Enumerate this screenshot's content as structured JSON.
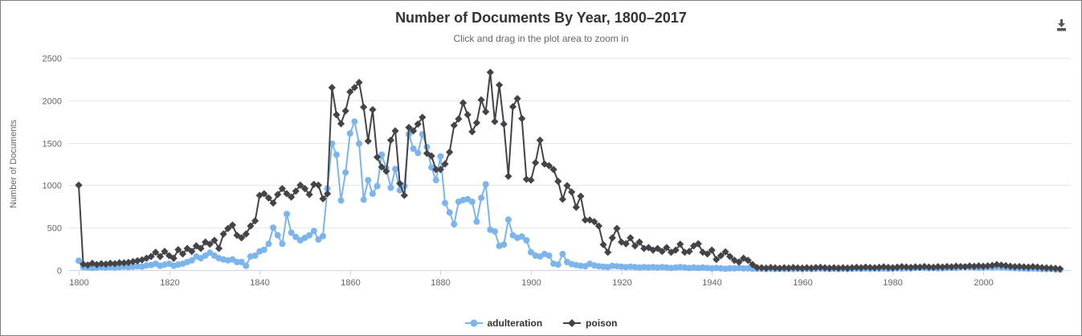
{
  "header": {
    "title": "Number of Documents By Year, 1800–2017",
    "subtitle": "Click and drag in the plot area to zoom in"
  },
  "toolbar": {
    "export_icon": "download-icon"
  },
  "colors": {
    "adulteration": "#7cb5ec",
    "poison": "#434348",
    "grid": "#e6e6e6",
    "axis_line": "#ccd6eb",
    "tick_label": "#666666",
    "title_text": "#333333",
    "export_icon": "#555555"
  },
  "chart_data": {
    "type": "line",
    "title": "Number of Documents By Year, 1800–2017",
    "subtitle": "Click and drag in the plot area to zoom in",
    "xlabel": "",
    "ylabel": "Number of Documents",
    "xlim": [
      1800,
      2017
    ],
    "ylim": [
      0,
      2500
    ],
    "x_ticks": [
      1800,
      1820,
      1840,
      1860,
      1880,
      1900,
      1920,
      1940,
      1960,
      1980,
      2000
    ],
    "y_ticks": [
      0,
      500,
      1000,
      1500,
      2000,
      2500
    ],
    "grid": "horizontal",
    "legend_position": "bottom-center",
    "x_years": {
      "start": 1800,
      "end": 2017,
      "step": 1
    },
    "series": [
      {
        "name": "adulteration",
        "color": "#7cb5ec",
        "marker": "circle",
        "values": [
          110,
          35,
          30,
          25,
          30,
          35,
          30,
          35,
          30,
          35,
          40,
          35,
          40,
          45,
          40,
          55,
          60,
          75,
          50,
          65,
          75,
          50,
          65,
          75,
          95,
          115,
          160,
          140,
          170,
          205,
          170,
          140,
          125,
          115,
          125,
          95,
          95,
          50,
          160,
          170,
          220,
          240,
          310,
          500,
          410,
          310,
          660,
          440,
          390,
          350,
          380,
          410,
          460,
          360,
          400,
          960,
          1490,
          1360,
          820,
          1150,
          1610,
          1750,
          1490,
          830,
          1060,
          900,
          990,
          1360,
          1200,
          970,
          1190,
          940,
          990,
          1600,
          1430,
          1380,
          1600,
          1450,
          1210,
          1060,
          1340,
          790,
          680,
          540,
          805,
          825,
          835,
          805,
          570,
          850,
          1010,
          475,
          455,
          285,
          300,
          595,
          410,
          380,
          395,
          350,
          210,
          170,
          160,
          190,
          170,
          75,
          65,
          190,
          95,
          70,
          60,
          50,
          45,
          75,
          55,
          45,
          40,
          35,
          50,
          45,
          40,
          35,
          40,
          35,
          30,
          35,
          30,
          35,
          30,
          35,
          30,
          25,
          30,
          35,
          30,
          25,
          30,
          25,
          30,
          25,
          20,
          25,
          20,
          15,
          20,
          20,
          25,
          20,
          20,
          15,
          15,
          15,
          12,
          15,
          12,
          15,
          12,
          15,
          12,
          15,
          12,
          15,
          12,
          15,
          18,
          15,
          12,
          15,
          12,
          15,
          12,
          15,
          18,
          15,
          18,
          15,
          18,
          15,
          18,
          15,
          18,
          20,
          18,
          22,
          20,
          25,
          28,
          25,
          22,
          25,
          20,
          22,
          25,
          28,
          25,
          35,
          40,
          35,
          30,
          28,
          30,
          35,
          30,
          38,
          32,
          30,
          25,
          22,
          20,
          18,
          15,
          18,
          15,
          12,
          10,
          12,
          8,
          5
        ]
      },
      {
        "name": "poison",
        "color": "#434348",
        "marker": "diamond",
        "values": [
          1000,
          70,
          60,
          80,
          65,
          75,
          70,
          80,
          75,
          85,
          85,
          90,
          100,
          110,
          120,
          140,
          160,
          210,
          160,
          220,
          170,
          140,
          240,
          190,
          255,
          220,
          285,
          255,
          330,
          305,
          350,
          255,
          425,
          490,
          530,
          410,
          380,
          425,
          520,
          580,
          880,
          900,
          850,
          790,
          890,
          960,
          900,
          860,
          930,
          1000,
          960,
          890,
          1010,
          1000,
          840,
          900,
          2150,
          1830,
          1725,
          1875,
          2100,
          2150,
          2210,
          1920,
          1520,
          1890,
          1330,
          1215,
          1165,
          1530,
          1640,
          1020,
          880,
          1680,
          1640,
          1720,
          1800,
          1375,
          1345,
          1185,
          1185,
          1250,
          1390,
          1705,
          1780,
          1970,
          1830,
          1630,
          1735,
          2005,
          1865,
          2330,
          1750,
          2180,
          1720,
          1105,
          1925,
          2020,
          1785,
          1070,
          1060,
          1265,
          1530,
          1250,
          1230,
          1185,
          1045,
          835,
          995,
          920,
          740,
          870,
          590,
          590,
          570,
          520,
          300,
          210,
          380,
          490,
          330,
          310,
          380,
          285,
          330,
          255,
          265,
          235,
          255,
          220,
          265,
          210,
          235,
          305,
          210,
          220,
          285,
          310,
          210,
          190,
          235,
          125,
          170,
          215,
          160,
          115,
          95,
          140,
          115,
          65,
          30,
          28,
          24,
          30,
          26,
          22,
          28,
          24,
          30,
          26,
          24,
          28,
          24,
          30,
          32,
          28,
          24,
          28,
          24,
          28,
          24,
          28,
          32,
          28,
          35,
          30,
          28,
          32,
          38,
          32,
          28,
          34,
          40,
          36,
          32,
          38,
          34,
          42,
          36,
          33,
          40,
          36,
          42,
          38,
          45,
          42,
          38,
          48,
          44,
          50,
          45,
          50,
          55,
          65,
          58,
          52,
          45,
          40,
          42,
          38,
          35,
          40,
          36,
          30,
          26,
          24,
          20,
          15
        ]
      }
    ]
  }
}
